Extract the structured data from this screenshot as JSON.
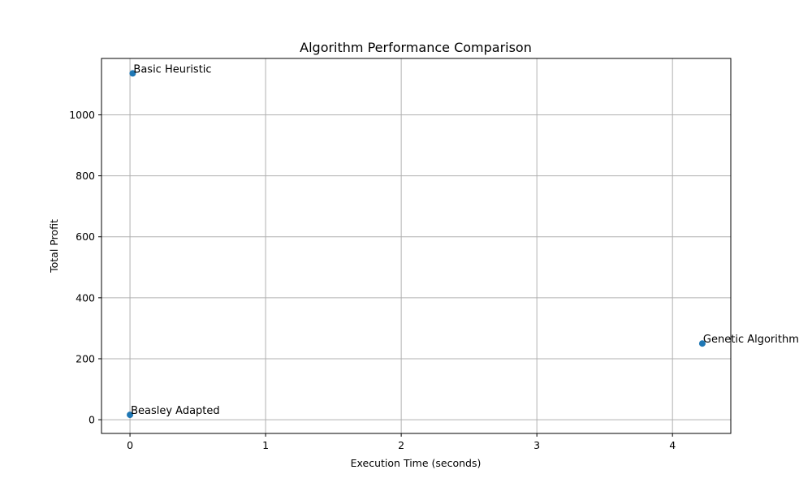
{
  "chart_data": {
    "type": "scatter",
    "title": "Algorithm Performance Comparison",
    "xlabel": "Execution Time (seconds)",
    "ylabel": "Total Profit",
    "xlim": [
      -0.21,
      4.43
    ],
    "ylim": [
      -45,
      1185
    ],
    "xticks": [
      0,
      1,
      2,
      3,
      4
    ],
    "yticks": [
      0,
      200,
      400,
      600,
      800,
      1000
    ],
    "grid": true,
    "point_color": "#1f77b4",
    "points": [
      {
        "label": "Basic Heuristic",
        "x": 0.02,
        "y": 1136
      },
      {
        "label": "Genetic Algorithm",
        "x": 4.22,
        "y": 250
      },
      {
        "label": "Beasley Adapted",
        "x": 0.0,
        "y": 16
      }
    ]
  }
}
